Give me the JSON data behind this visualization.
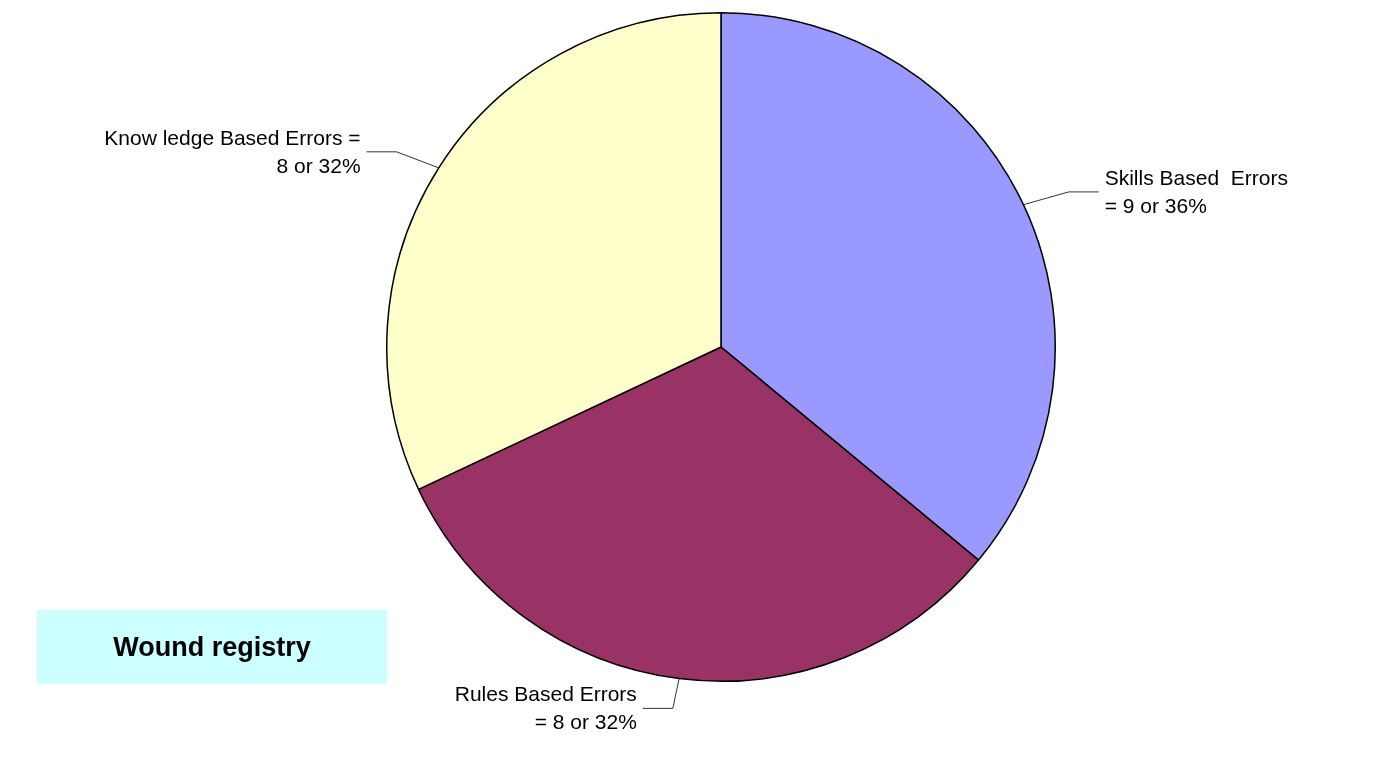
{
  "chart_data": {
    "type": "pie",
    "categories": [
      "Skills Based  Errors",
      "Rules Based Errors",
      "Know ledge Based Errors ="
    ],
    "values": [
      9,
      8,
      8
    ],
    "value_labels": [
      "= 9 or 36%",
      "= 8 or 32%",
      "8 or 32%"
    ],
    "colors": [
      "#9999ff",
      "#993366",
      "#ffffcc"
    ],
    "annotations": [
      "Wound registry"
    ]
  }
}
